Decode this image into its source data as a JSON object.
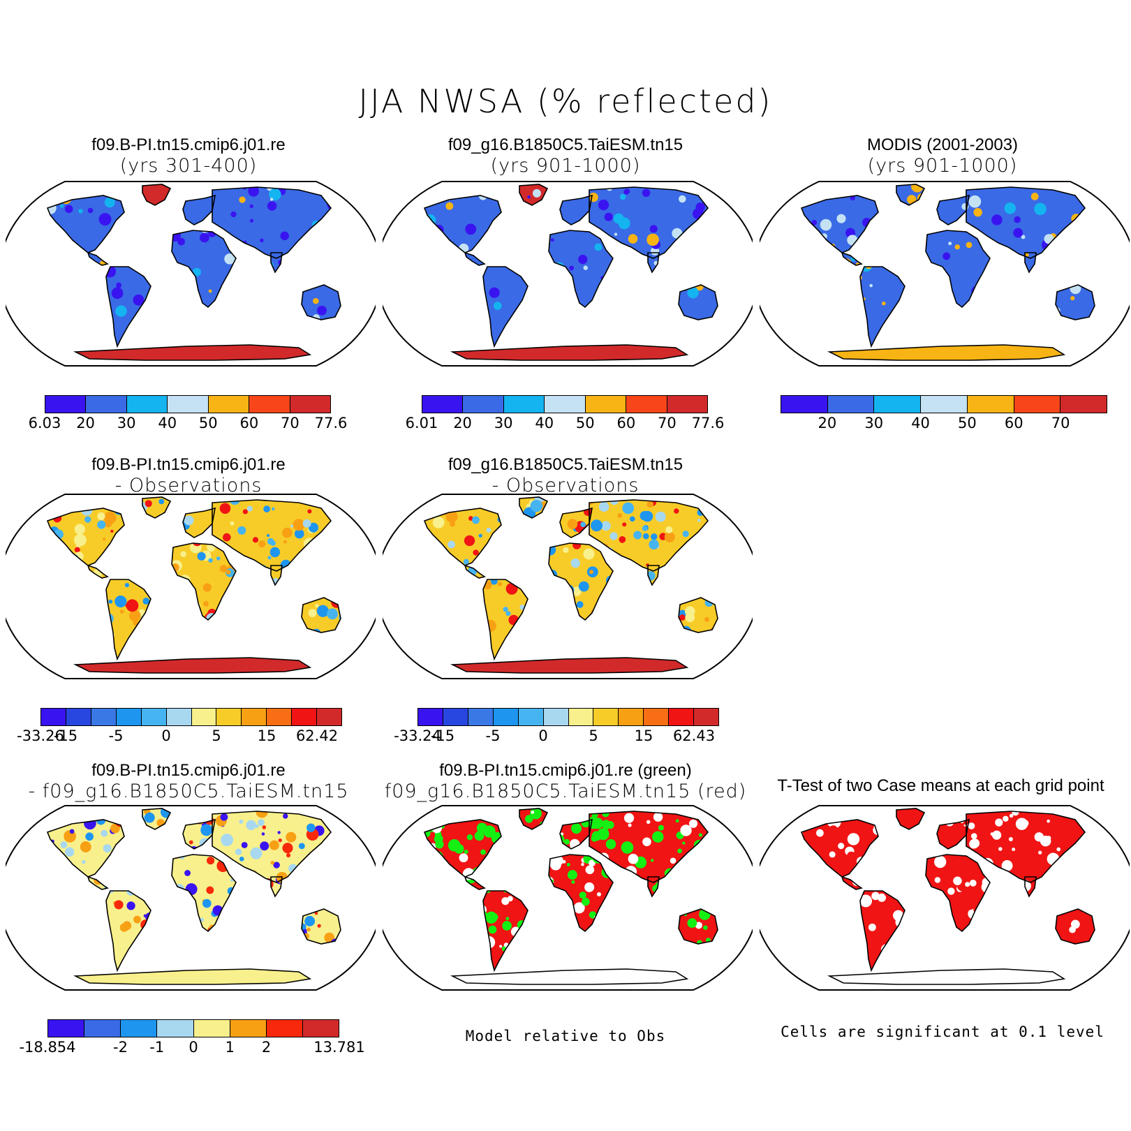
{
  "title": "JJA NWSA (% reflected)",
  "panels": [
    {
      "id": "p1",
      "line1": "f09.B-PI.tn15.cmip6.j01.re",
      "line2": "(yrs 301-400)",
      "scheme": "case"
    },
    {
      "id": "p2",
      "line1": "f09_g16.B1850C5.TaiESM.tn15",
      "line2": "(yrs 901-1000)",
      "scheme": "case"
    },
    {
      "id": "p3",
      "line1": "MODIS (2001-2003)",
      "line2": "(yrs 901-1000)",
      "scheme": "obs"
    },
    {
      "id": "p4",
      "line1": "f09.B-PI.tn15.cmip6.j01.re",
      "line2": "- Observations",
      "scheme": "diff"
    },
    {
      "id": "p5",
      "line1": "f09_g16.B1850C5.TaiESM.tn15",
      "line2": "- Observations",
      "scheme": "diff"
    },
    {
      "id": "p7",
      "line1": "f09.B-PI.tn15.cmip6.j01.re",
      "line2": "- f09_g16.B1850C5.TaiESM.tn15",
      "scheme": "casediff"
    },
    {
      "id": "p8",
      "line1": "f09.B-PI.tn15.cmip6.j01.re (green)",
      "line2": "f09_g16.B1850C5.TaiESM.tn15 (red)",
      "scheme": "greenred"
    },
    {
      "id": "p9",
      "line1": "T-Test of two Case means at each grid point",
      "line2": "",
      "scheme": "ttest"
    }
  ],
  "colorbars": {
    "cb1": {
      "colors": [
        "#3a14f0",
        "#3a6ae6",
        "#14b4f0",
        "#c4e2f4",
        "#f8b414",
        "#f8461a",
        "#d22a2a"
      ],
      "labels": [
        "6.03",
        "20",
        "30",
        "40",
        "50",
        "60",
        "70",
        "77.6"
      ]
    },
    "cb2": {
      "colors": [
        "#3a14f0",
        "#3a6ae6",
        "#14b4f0",
        "#c4e2f4",
        "#f8b414",
        "#f8461a",
        "#d22a2a"
      ],
      "labels": [
        "6.01",
        "20",
        "30",
        "40",
        "50",
        "60",
        "70",
        "77.6"
      ]
    },
    "cb3": {
      "colors": [
        "#3a14f0",
        "#3a6ae6",
        "#14b4f0",
        "#c4e2f4",
        "#f8b414",
        "#f8461a",
        "#d22a2a"
      ],
      "labels": [
        "",
        "20",
        "30",
        "40",
        "50",
        "60",
        "70",
        ""
      ]
    },
    "cb4": {
      "colors": [
        "#3a14f0",
        "#2846e0",
        "#3a78e6",
        "#1e96f0",
        "#46b4f0",
        "#a8d8f0",
        "#f8f08c",
        "#f8cc28",
        "#f8a014",
        "#f86e14",
        "#f01414",
        "#d22a2a"
      ],
      "labels": [
        "-33.26",
        "-15",
        "",
        "-5",
        "",
        "0",
        "",
        "5",
        "",
        "15",
        "",
        "62.42"
      ]
    },
    "cb5": {
      "colors": [
        "#3a14f0",
        "#2846e0",
        "#3a78e6",
        "#1e96f0",
        "#46b4f0",
        "#a8d8f0",
        "#f8f08c",
        "#f8cc28",
        "#f8a014",
        "#f86e14",
        "#f01414",
        "#d22a2a"
      ],
      "labels": [
        "-33.24",
        "-15",
        "",
        "-5",
        "",
        "0",
        "",
        "5",
        "",
        "15",
        "",
        "62.43"
      ]
    },
    "cb7": {
      "colors": [
        "#3a14f0",
        "#3a6ae6",
        "#1e96f0",
        "#a8d8f0",
        "#f8f08c",
        "#f8a014",
        "#f8280a",
        "#d22a2a"
      ],
      "labels": [
        "-18.854",
        "",
        "-2",
        "-1",
        "0",
        "1",
        "2",
        "",
        "13.781"
      ]
    }
  },
  "notes": {
    "model_relative": "Model relative to Obs",
    "significant": "Cells are significant at 0.1 level"
  }
}
